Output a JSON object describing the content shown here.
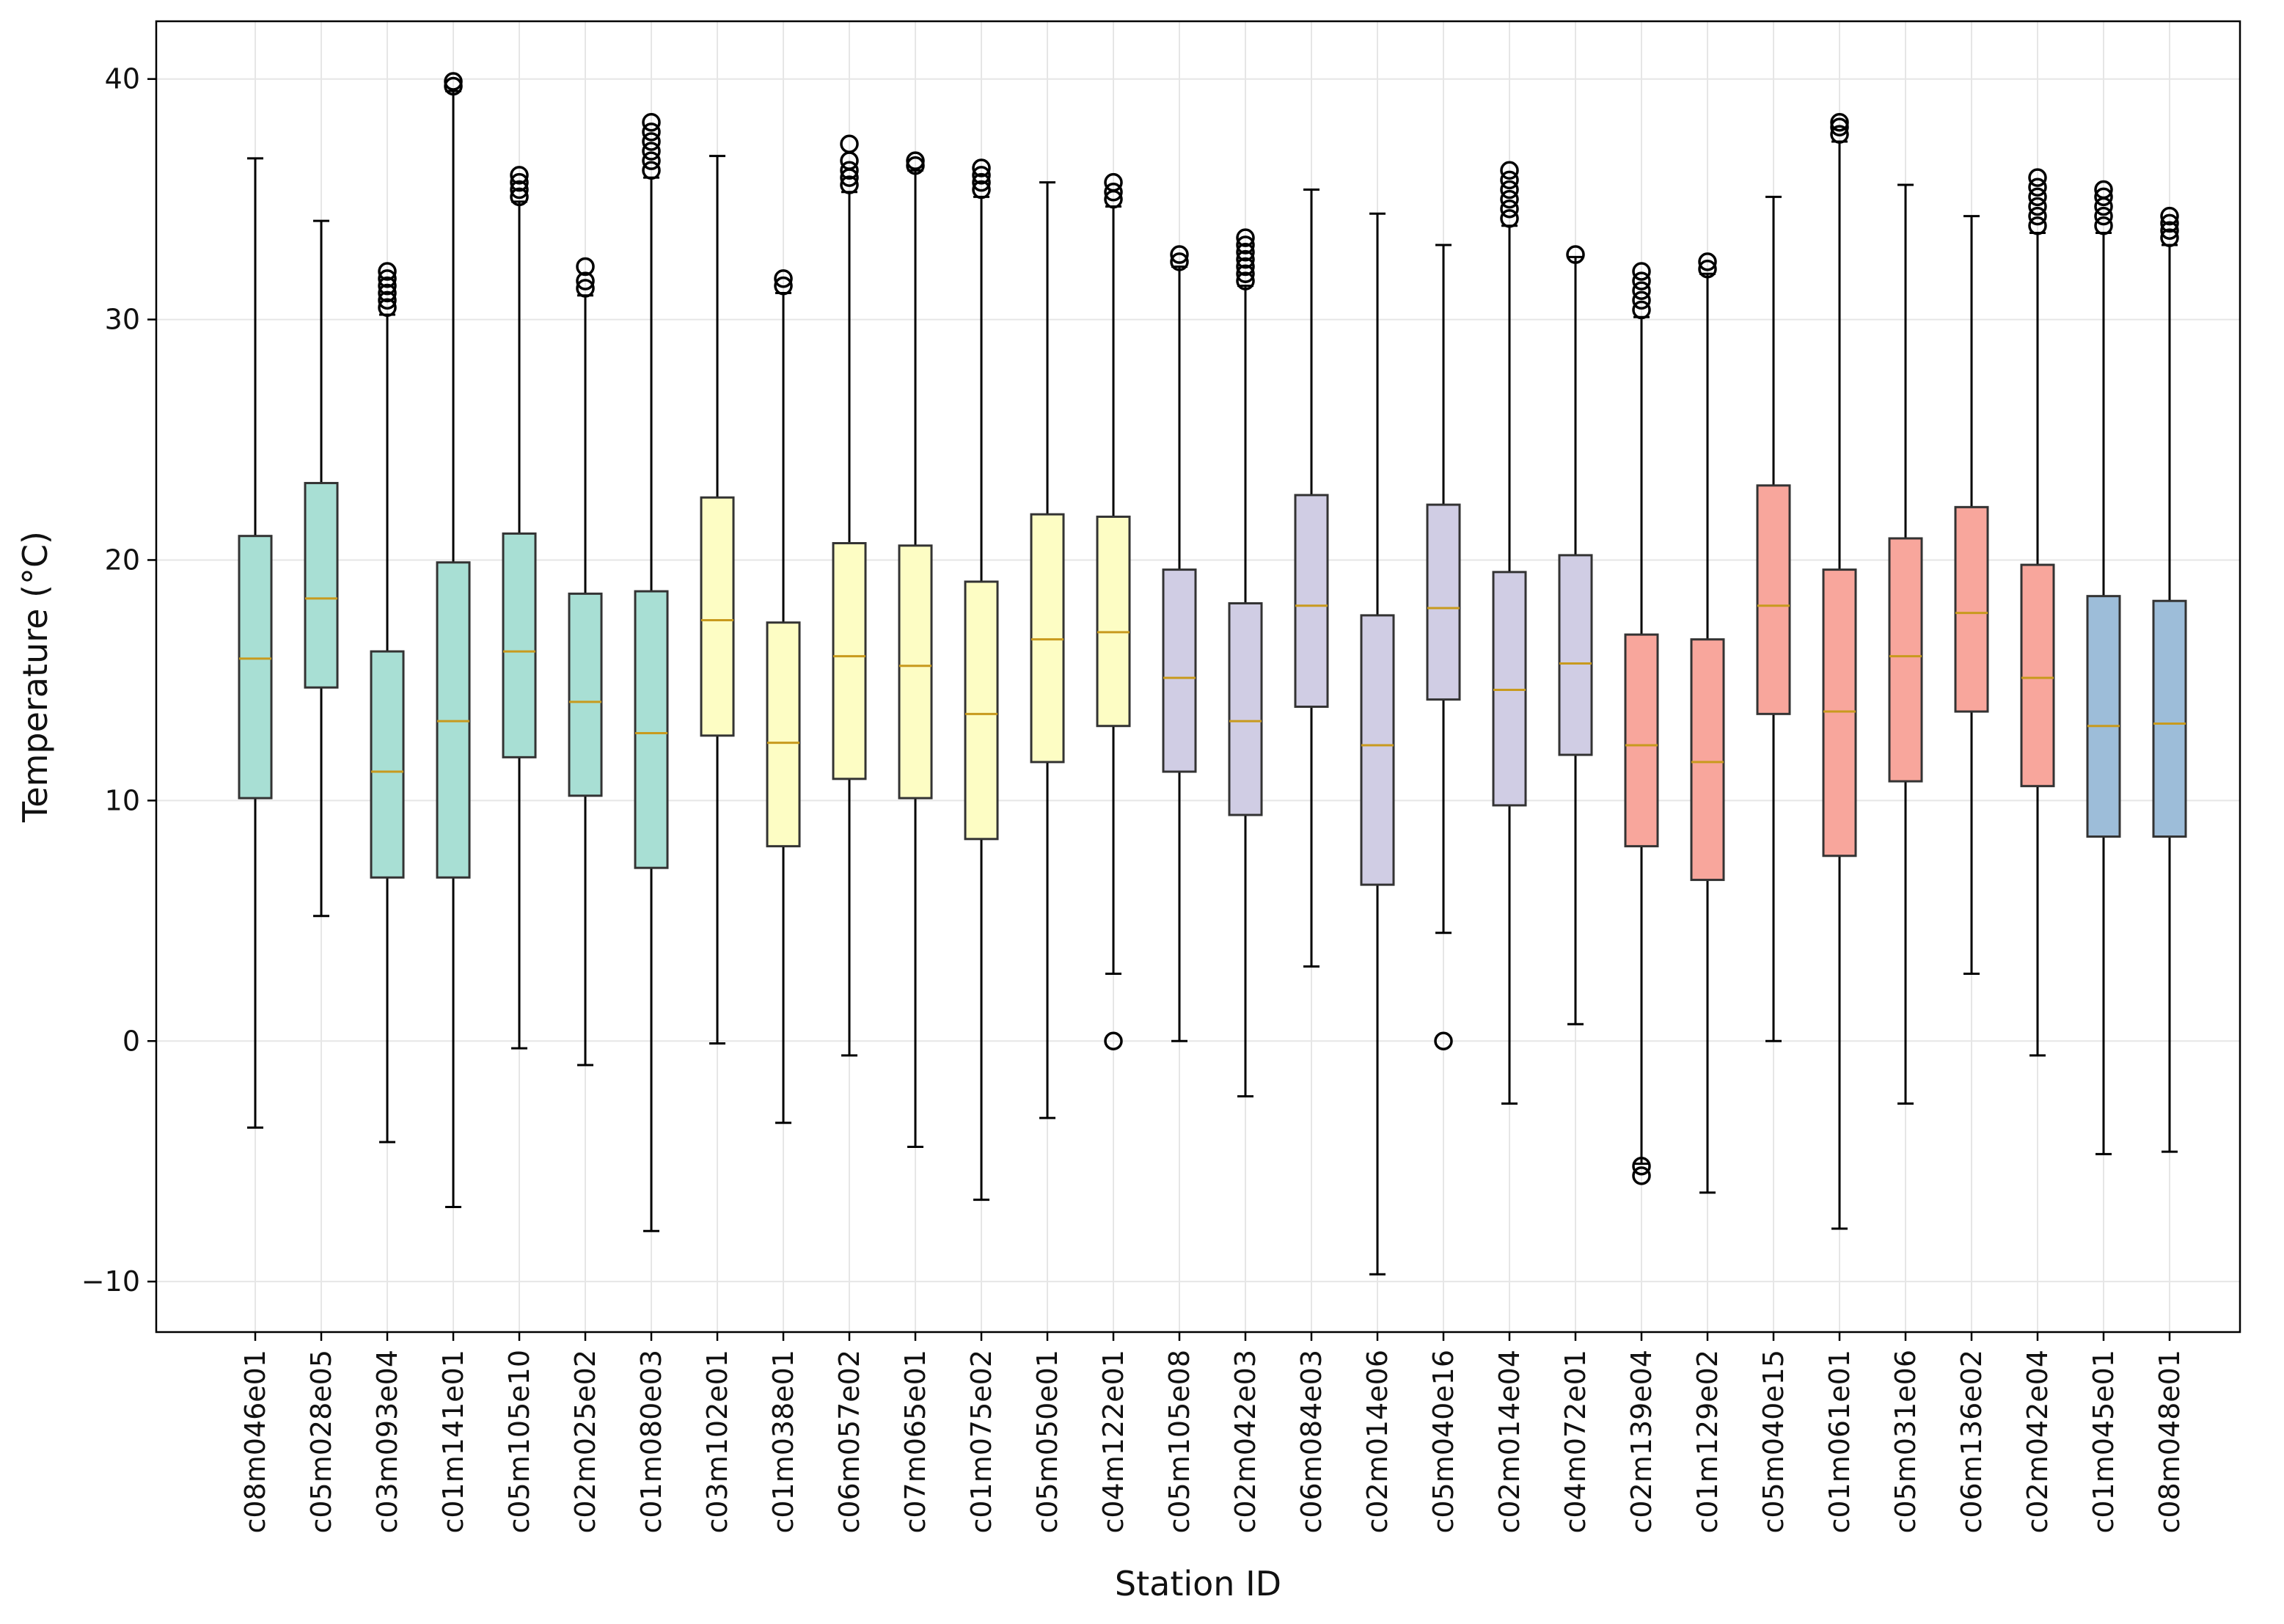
{
  "chart_data": {
    "type": "box",
    "title": "",
    "xlabel": "Station ID",
    "ylabel": "Temperature (°C)",
    "ylim": [
      -12.1,
      42.4
    ],
    "yticks": [
      -10,
      0,
      10,
      20,
      30,
      40
    ],
    "grid": true,
    "legend": "none",
    "colors": {
      "teal": "#a8dfd4",
      "yellow": "#fdfdc4",
      "lavender": "#d0cde4",
      "salmon": "#f8a69c",
      "blue": "#9dbdd9",
      "median": "#c89a1e"
    },
    "series": [
      {
        "station": "c08m046e01",
        "color": "teal",
        "whisker_low": -3.6,
        "q1": 10.1,
        "median": 15.9,
        "q3": 21.0,
        "whisker_high": 36.7,
        "outliers": []
      },
      {
        "station": "c05m028e05",
        "color": "teal",
        "whisker_low": 5.2,
        "q1": 14.7,
        "median": 18.4,
        "q3": 23.2,
        "whisker_high": 34.1,
        "outliers": []
      },
      {
        "station": "c03m093e04",
        "color": "teal",
        "whisker_low": -4.2,
        "q1": 6.8,
        "median": 11.2,
        "q3": 16.2,
        "whisker_high": 30.2,
        "outliers": [
          30.5,
          30.8,
          31.1,
          31.4,
          31.7,
          32.0
        ]
      },
      {
        "station": "c01m141e01",
        "color": "teal",
        "whisker_low": -6.9,
        "q1": 6.8,
        "median": 13.3,
        "q3": 19.9,
        "whisker_high": 39.5,
        "outliers": [
          39.7,
          39.9
        ]
      },
      {
        "station": "c05m105e10",
        "color": "teal",
        "whisker_low": -0.3,
        "q1": 11.8,
        "median": 16.2,
        "q3": 21.1,
        "whisker_high": 34.9,
        "outliers": [
          35.1,
          35.4,
          35.7,
          36.0
        ]
      },
      {
        "station": "c02m025e02",
        "color": "teal",
        "whisker_low": -1.0,
        "q1": 10.2,
        "median": 14.1,
        "q3": 18.6,
        "whisker_high": 31.0,
        "outliers": [
          31.3,
          31.6,
          32.2
        ]
      },
      {
        "station": "c01m080e03",
        "color": "teal",
        "whisker_low": -7.9,
        "q1": 7.2,
        "median": 12.8,
        "q3": 18.7,
        "whisker_high": 35.9,
        "outliers": [
          36.2,
          36.6,
          37.0,
          37.4,
          37.8,
          38.2
        ]
      },
      {
        "station": "c03m102e01",
        "color": "yellow",
        "whisker_low": -0.1,
        "q1": 12.7,
        "median": 17.5,
        "q3": 22.6,
        "whisker_high": 36.8,
        "outliers": []
      },
      {
        "station": "c01m038e01",
        "color": "yellow",
        "whisker_low": -3.4,
        "q1": 8.1,
        "median": 12.4,
        "q3": 17.4,
        "whisker_high": 31.1,
        "outliers": [
          31.4,
          31.7
        ]
      },
      {
        "station": "c06m057e02",
        "color": "yellow",
        "whisker_low": -0.6,
        "q1": 10.9,
        "median": 16.0,
        "q3": 20.7,
        "whisker_high": 35.3,
        "outliers": [
          35.6,
          35.9,
          36.2,
          36.6,
          37.3
        ]
      },
      {
        "station": "c07m065e01",
        "color": "yellow",
        "whisker_low": -4.4,
        "q1": 10.1,
        "median": 15.6,
        "q3": 20.6,
        "whisker_high": 36.2,
        "outliers": [
          36.4,
          36.6
        ]
      },
      {
        "station": "c01m075e02",
        "color": "yellow",
        "whisker_low": -6.6,
        "q1": 8.4,
        "median": 13.6,
        "q3": 19.1,
        "whisker_high": 35.1,
        "outliers": [
          35.4,
          35.7,
          36.0,
          36.3
        ]
      },
      {
        "station": "c05m050e01",
        "color": "yellow",
        "whisker_low": -3.2,
        "q1": 11.6,
        "median": 16.7,
        "q3": 21.9,
        "whisker_high": 35.7,
        "outliers": []
      },
      {
        "station": "c04m122e01",
        "color": "yellow",
        "whisker_low": 2.8,
        "q1": 13.1,
        "median": 17.0,
        "q3": 21.8,
        "whisker_high": 34.7,
        "outliers": [
          0.0,
          35.0,
          35.3,
          35.7
        ]
      },
      {
        "station": "c05m105e08",
        "color": "lavender",
        "whisker_low": 0.0,
        "q1": 11.2,
        "median": 15.1,
        "q3": 19.6,
        "whisker_high": 32.2,
        "outliers": [
          32.4,
          32.7
        ]
      },
      {
        "station": "c02m042e03",
        "color": "lavender",
        "whisker_low": -2.3,
        "q1": 9.4,
        "median": 13.3,
        "q3": 18.2,
        "whisker_high": 31.4,
        "outliers": [
          31.6,
          31.9,
          32.2,
          32.5,
          32.8,
          33.1,
          33.4
        ]
      },
      {
        "station": "c06m084e03",
        "color": "lavender",
        "whisker_low": 3.1,
        "q1": 13.9,
        "median": 18.1,
        "q3": 22.7,
        "whisker_high": 35.4,
        "outliers": []
      },
      {
        "station": "c02m014e06",
        "color": "lavender",
        "whisker_low": -9.7,
        "q1": 6.5,
        "median": 12.3,
        "q3": 17.7,
        "whisker_high": 34.4,
        "outliers": []
      },
      {
        "station": "c05m040e16",
        "color": "lavender",
        "whisker_low": 4.5,
        "q1": 14.2,
        "median": 18.0,
        "q3": 22.3,
        "whisker_high": 33.1,
        "outliers": [
          0.0
        ]
      },
      {
        "station": "c02m014e04",
        "color": "lavender",
        "whisker_low": -2.6,
        "q1": 9.8,
        "median": 14.6,
        "q3": 19.5,
        "whisker_high": 33.9,
        "outliers": [
          34.2,
          34.6,
          35.0,
          35.4,
          35.8,
          36.2
        ]
      },
      {
        "station": "c04m072e01",
        "color": "lavender",
        "whisker_low": 0.7,
        "q1": 11.9,
        "median": 15.7,
        "q3": 20.2,
        "whisker_high": 32.6,
        "outliers": [
          32.7
        ]
      },
      {
        "station": "c02m139e04",
        "color": "salmon",
        "whisker_low": -5.1,
        "q1": 8.1,
        "median": 12.3,
        "q3": 16.9,
        "whisker_high": 30.1,
        "outliers": [
          -5.6,
          -5.2,
          30.4,
          30.8,
          31.2,
          31.6,
          32.0
        ]
      },
      {
        "station": "c01m129e02",
        "color": "salmon",
        "whisker_low": -6.3,
        "q1": 6.7,
        "median": 11.6,
        "q3": 16.7,
        "whisker_high": 31.9,
        "outliers": [
          32.1,
          32.4
        ]
      },
      {
        "station": "c05m040e15",
        "color": "salmon",
        "whisker_low": 0.0,
        "q1": 13.6,
        "median": 18.1,
        "q3": 23.1,
        "whisker_high": 35.1,
        "outliers": []
      },
      {
        "station": "c01m061e01",
        "color": "salmon",
        "whisker_low": -7.8,
        "q1": 7.7,
        "median": 13.7,
        "q3": 19.6,
        "whisker_high": 37.4,
        "outliers": [
          37.7,
          38.0,
          38.2
        ]
      },
      {
        "station": "c05m031e06",
        "color": "salmon",
        "whisker_low": -2.6,
        "q1": 10.8,
        "median": 16.0,
        "q3": 20.9,
        "whisker_high": 35.6,
        "outliers": []
      },
      {
        "station": "c06m136e02",
        "color": "salmon",
        "whisker_low": 2.8,
        "q1": 13.7,
        "median": 17.8,
        "q3": 22.2,
        "whisker_high": 34.3,
        "outliers": []
      },
      {
        "station": "c02m042e04",
        "color": "salmon",
        "whisker_low": -0.6,
        "q1": 10.6,
        "median": 15.1,
        "q3": 19.8,
        "whisker_high": 33.6,
        "outliers": [
          33.9,
          34.3,
          34.7,
          35.1,
          35.5,
          35.9
        ]
      },
      {
        "station": "c01m045e01",
        "color": "blue",
        "whisker_low": -4.7,
        "q1": 8.5,
        "median": 13.1,
        "q3": 18.5,
        "whisker_high": 33.6,
        "outliers": [
          33.9,
          34.3,
          34.7,
          35.1,
          35.4
        ]
      },
      {
        "station": "c08m048e01",
        "color": "blue",
        "whisker_low": -4.6,
        "q1": 8.5,
        "median": 13.2,
        "q3": 18.3,
        "whisker_high": 33.1,
        "outliers": [
          33.4,
          33.7,
          34.0,
          34.3
        ]
      }
    ]
  }
}
